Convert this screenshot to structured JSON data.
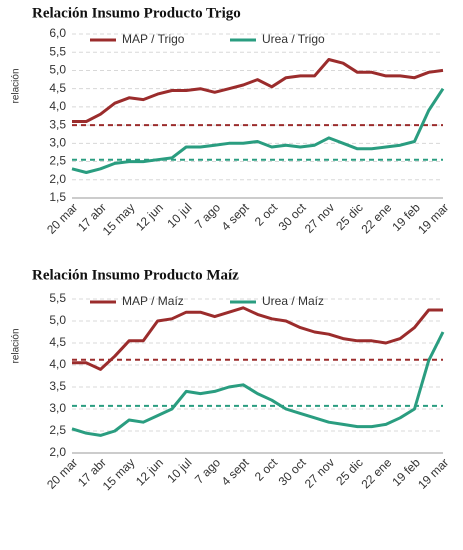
{
  "chart_data": [
    {
      "type": "line",
      "title": "Relación Insumo Producto Trigo",
      "y_label": "relación",
      "legend": "top",
      "grid": true,
      "categories": [
        "20 mar",
        null,
        "17 abr",
        null,
        "15 may",
        null,
        "12 jun",
        null,
        "10 jul",
        null,
        "7 ago",
        null,
        "4 sept",
        null,
        "2 oct",
        null,
        "30 oct",
        null,
        "27 nov",
        null,
        "25 dic",
        null,
        "22 ene",
        null,
        "19 feb",
        null,
        "19 mar"
      ],
      "ylim": [
        1.5,
        6.0
      ],
      "yticks": [
        {
          "value": 1.5,
          "label": "1,5"
        },
        {
          "value": 2.0,
          "label": "2,0"
        },
        {
          "value": 2.5,
          "label": "2,5"
        },
        {
          "value": 3.0,
          "label": "3,0"
        },
        {
          "value": 3.5,
          "label": "3,5"
        },
        {
          "value": 4.0,
          "label": "4,0"
        },
        {
          "value": 4.5,
          "label": "4,5"
        },
        {
          "value": 5.0,
          "label": "5,0"
        },
        {
          "value": 5.5,
          "label": "5,5"
        },
        {
          "value": 6.0,
          "label": "6,0"
        }
      ],
      "series": [
        {
          "name": "MAP / Trigo",
          "color": "#9b2c2c",
          "reference": 3.5,
          "values": [
            3.6,
            3.6,
            3.8,
            4.1,
            4.25,
            4.2,
            4.35,
            4.45,
            4.45,
            4.5,
            4.4,
            4.5,
            4.6,
            4.75,
            4.55,
            4.8,
            4.85,
            4.85,
            5.3,
            5.2,
            4.95,
            4.95,
            4.85,
            4.85,
            4.8,
            4.95,
            5.0
          ]
        },
        {
          "name": "Urea / Trigo",
          "color": "#2a9d80",
          "reference": 2.55,
          "values": [
            2.3,
            2.2,
            2.3,
            2.45,
            2.5,
            2.5,
            2.55,
            2.6,
            2.9,
            2.9,
            2.95,
            3.0,
            3.0,
            3.05,
            2.9,
            2.95,
            2.9,
            2.95,
            3.15,
            3.0,
            2.85,
            2.85,
            2.9,
            2.95,
            3.05,
            3.9,
            4.5
          ]
        }
      ]
    },
    {
      "type": "line",
      "title": "Relación Insumo Producto Maíz",
      "y_label": "relación",
      "legend": "top",
      "grid": true,
      "categories": [
        "20 mar",
        null,
        "17 abr",
        null,
        "15 may",
        null,
        "12 jun",
        null,
        "10 jul",
        null,
        "7 ago",
        null,
        "4 sept",
        null,
        "2 oct",
        null,
        "30 oct",
        null,
        "27 nov",
        null,
        "25 dic",
        null,
        "22 ene",
        null,
        "19 feb",
        null,
        "19 mar"
      ],
      "ylim": [
        2.0,
        5.5
      ],
      "yticks": [
        {
          "value": 2.0,
          "label": "2,0"
        },
        {
          "value": 2.5,
          "label": "2,5"
        },
        {
          "value": 3.0,
          "label": "3,0"
        },
        {
          "value": 3.5,
          "label": "3,5"
        },
        {
          "value": 4.0,
          "label": "4,0"
        },
        {
          "value": 4.5,
          "label": "4,5"
        },
        {
          "value": 5.0,
          "label": "5,0"
        },
        {
          "value": 5.5,
          "label": "5,5"
        }
      ],
      "series": [
        {
          "name": "MAP / Maíz",
          "color": "#9b2c2c",
          "reference": 4.12,
          "values": [
            4.05,
            4.05,
            3.9,
            4.2,
            4.55,
            4.55,
            5.0,
            5.05,
            5.2,
            5.2,
            5.1,
            5.2,
            5.3,
            5.15,
            5.05,
            5.0,
            4.85,
            4.75,
            4.7,
            4.6,
            4.55,
            4.55,
            4.5,
            4.6,
            4.85,
            5.25,
            5.25
          ]
        },
        {
          "name": "Urea / Maíz",
          "color": "#2a9d80",
          "reference": 3.07,
          "values": [
            2.55,
            2.45,
            2.4,
            2.5,
            2.75,
            2.7,
            2.85,
            3.0,
            3.4,
            3.35,
            3.4,
            3.5,
            3.55,
            3.35,
            3.2,
            3.0,
            2.9,
            2.8,
            2.7,
            2.65,
            2.6,
            2.6,
            2.65,
            2.8,
            3.0,
            4.1,
            4.75
          ]
        }
      ]
    }
  ]
}
